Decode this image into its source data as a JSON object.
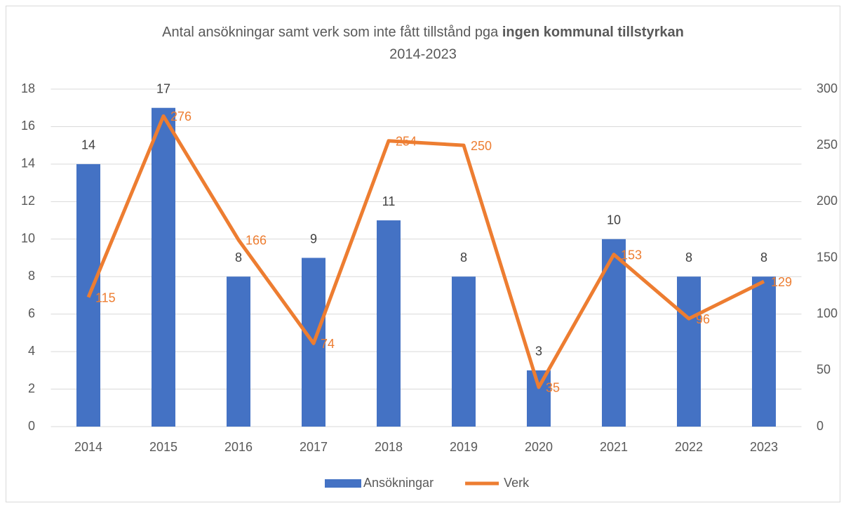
{
  "chart_data": {
    "type": "bar_line",
    "title": "Antal ansökningar samt verk som inte fått tillstånd pga",
    "title_emphasis": "ingen kommunal tillstyrkan",
    "subtitle": "2014-2023",
    "categories": [
      "2014",
      "2015",
      "2016",
      "2017",
      "2018",
      "2019",
      "2020",
      "2021",
      "2022",
      "2023"
    ],
    "series": [
      {
        "name": "Ansökningar",
        "type": "bar",
        "color": "#4472c4",
        "values": [
          14,
          17,
          8,
          9,
          11,
          8,
          3,
          10,
          8,
          8
        ]
      },
      {
        "name": "Verk",
        "type": "line",
        "axis": "y2",
        "color": "#ed7d31",
        "values": [
          115,
          276,
          166,
          74,
          254,
          250,
          35,
          153,
          96,
          129
        ]
      }
    ],
    "ylim": [
      0,
      18
    ],
    "yticks": [
      0,
      2,
      4,
      6,
      8,
      10,
      12,
      14,
      16,
      18
    ],
    "y2lim": [
      0,
      300
    ],
    "y2ticks": [
      0,
      50,
      100,
      150,
      200,
      250,
      300
    ],
    "grid": true,
    "legend": "bottom"
  }
}
